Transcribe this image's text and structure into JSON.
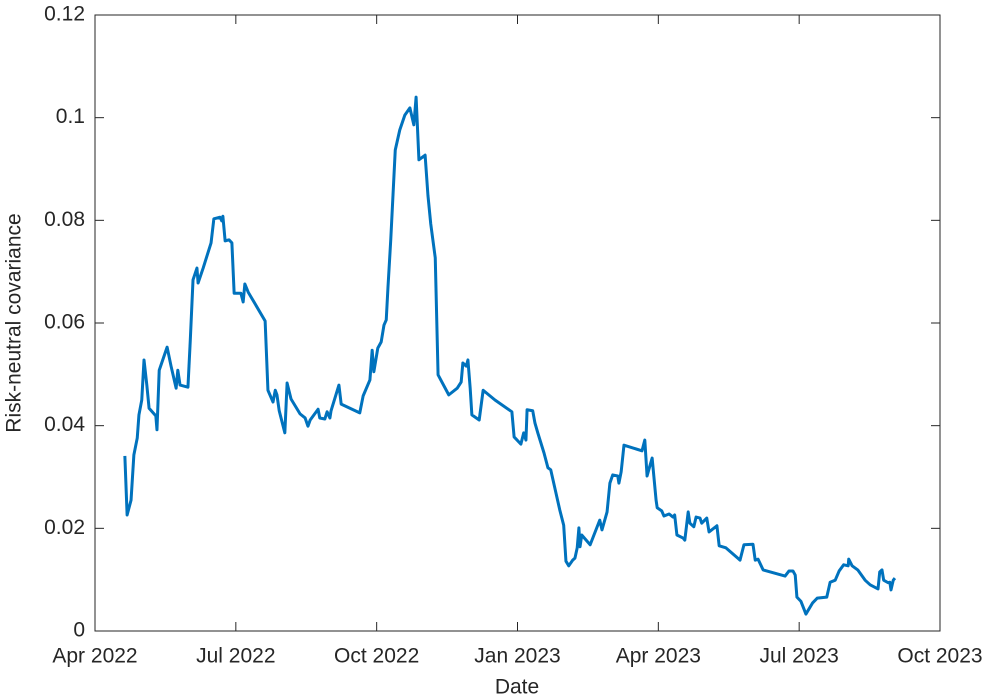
{
  "chart_data": {
    "type": "line",
    "xlabel": "Date",
    "ylabel": "Risk-neutral covariance",
    "xlim": [
      2022.25,
      2023.75
    ],
    "xticks": [
      {
        "value": 2022.25,
        "label": "Apr 2022"
      },
      {
        "value": 2022.5,
        "label": "Jul 2022"
      },
      {
        "value": 2022.75,
        "label": "Oct 2022"
      },
      {
        "value": 2023.0,
        "label": "Jan 2023"
      },
      {
        "value": 2023.25,
        "label": "Apr 2023"
      },
      {
        "value": 2023.5,
        "label": "Jul 2023"
      },
      {
        "value": 2023.75,
        "label": "Oct 2023"
      }
    ],
    "ylim": [
      0,
      0.12
    ],
    "yticks": [
      0,
      0.02,
      0.04,
      0.06,
      0.08,
      0.1,
      0.12
    ],
    "grid": false,
    "x": [
      2022.303,
      2022.307,
      2022.314,
      2022.319,
      2022.325,
      2022.328,
      2022.333,
      2022.337,
      2022.342,
      2022.346,
      2022.358,
      2022.36,
      2022.364,
      2022.378,
      2022.385,
      2022.394,
      2022.397,
      2022.401,
      2022.415,
      2022.419,
      2022.424,
      2022.431,
      2022.433,
      2022.442,
      2022.456,
      2022.461,
      2022.472,
      2022.475,
      2022.477,
      2022.481,
      2022.488,
      2022.493,
      2022.497,
      2022.509,
      2022.513,
      2022.516,
      2022.522,
      2022.552,
      2022.557,
      2022.566,
      2022.57,
      2022.573,
      2022.577,
      2022.587,
      2022.591,
      2022.598,
      2022.614,
      2022.623,
      2022.628,
      2022.632,
      2022.646,
      2022.649,
      2022.658,
      2022.662,
      2022.667,
      2022.669,
      2022.683,
      2022.687,
      2022.72,
      2022.726,
      2022.738,
      2022.742,
      2022.745,
      2022.752,
      2022.758,
      2022.763,
      2022.767,
      2022.77,
      2022.775,
      2022.783,
      2022.791,
      2022.8,
      2022.809,
      2022.816,
      2022.82,
      2022.825,
      2022.836,
      2022.841,
      2022.846,
      2022.854,
      2022.859,
      2022.878,
      2022.893,
      2022.9,
      2022.903,
      2022.909,
      2022.912,
      2022.916,
      2022.919,
      2022.932,
      2022.939,
      2022.96,
      2022.99,
      2022.994,
      2023.006,
      2023.011,
      2023.015,
      2023.017,
      2023.027,
      2023.031,
      2023.036,
      2023.047,
      2023.054,
      2023.059,
      2023.067,
      2023.075,
      2023.082,
      2023.086,
      2023.091,
      2023.098,
      2023.102,
      2023.106,
      2023.109,
      2023.111,
      2023.114,
      2023.129,
      2023.146,
      2023.15,
      2023.159,
      2023.164,
      2023.169,
      2023.178,
      2023.18,
      2023.184,
      2023.189,
      2023.221,
      2023.226,
      2023.23,
      2023.233,
      2023.239,
      2023.246,
      2023.248,
      2023.256,
      2023.26,
      2023.269,
      2023.276,
      2023.279,
      2023.283,
      2023.294,
      2023.297,
      2023.303,
      2023.306,
      2023.313,
      2023.317,
      2023.324,
      2023.327,
      2023.336,
      2023.34,
      2023.354,
      2023.358,
      2023.37,
      2023.391,
      2023.395,
      2023.402,
      2023.418,
      2023.422,
      2023.427,
      2023.436,
      2023.475,
      2023.482,
      2023.489,
      2023.493,
      2023.496,
      2023.503,
      2023.512,
      2023.524,
      2023.532,
      2023.549,
      2023.555,
      2023.564,
      2023.571,
      2023.579,
      2023.587,
      2023.588,
      2023.594,
      2023.604,
      2023.617,
      2023.626,
      2023.64,
      2023.643,
      2023.647,
      2023.65,
      2023.658,
      2023.661,
      2023.663,
      2023.667,
      2023.67
    ],
    "series": [
      {
        "color": "#0072BD",
        "values": [
          0.0341,
          0.0226,
          0.0255,
          0.0343,
          0.0376,
          0.0421,
          0.045,
          0.0528,
          0.0479,
          0.0434,
          0.0419,
          0.0392,
          0.0508,
          0.0553,
          0.0516,
          0.0473,
          0.0508,
          0.0479,
          0.0475,
          0.0563,
          0.0684,
          0.0707,
          0.0678,
          0.0707,
          0.0756,
          0.0803,
          0.0806,
          0.0799,
          0.0808,
          0.076,
          0.0762,
          0.0756,
          0.0658,
          0.0658,
          0.0641,
          0.0676,
          0.066,
          0.0604,
          0.0469,
          0.0446,
          0.0469,
          0.046,
          0.0429,
          0.0386,
          0.0483,
          0.0452,
          0.0423,
          0.0415,
          0.0399,
          0.0411,
          0.0432,
          0.0415,
          0.0413,
          0.0427,
          0.0415,
          0.0429,
          0.0479,
          0.0442,
          0.0425,
          0.0458,
          0.0489,
          0.0547,
          0.0505,
          0.0551,
          0.0563,
          0.0596,
          0.0606,
          0.0668,
          0.0762,
          0.0937,
          0.0976,
          0.1005,
          0.1019,
          0.0986,
          0.104,
          0.0918,
          0.0927,
          0.0849,
          0.0793,
          0.0727,
          0.0499,
          0.046,
          0.0473,
          0.0485,
          0.0522,
          0.0516,
          0.0528,
          0.0473,
          0.0421,
          0.0411,
          0.0469,
          0.045,
          0.0427,
          0.0378,
          0.0364,
          0.0386,
          0.0372,
          0.0431,
          0.0429,
          0.0405,
          0.0386,
          0.0347,
          0.0318,
          0.0314,
          0.0275,
          0.0236,
          0.0206,
          0.0136,
          0.0127,
          0.0138,
          0.0142,
          0.0162,
          0.0201,
          0.0164,
          0.0187,
          0.0168,
          0.0216,
          0.0197,
          0.0232,
          0.0288,
          0.0304,
          0.0302,
          0.0288,
          0.031,
          0.0362,
          0.0351,
          0.0372,
          0.0302,
          0.0314,
          0.0337,
          0.0255,
          0.024,
          0.0234,
          0.0224,
          0.0228,
          0.0222,
          0.0226,
          0.0187,
          0.0181,
          0.0177,
          0.0232,
          0.021,
          0.0203,
          0.0222,
          0.022,
          0.021,
          0.022,
          0.0193,
          0.0205,
          0.0166,
          0.0162,
          0.0142,
          0.0138,
          0.0168,
          0.0169,
          0.0138,
          0.014,
          0.0119,
          0.0107,
          0.0117,
          0.0117,
          0.0109,
          0.0066,
          0.0058,
          0.0033,
          0.0055,
          0.0064,
          0.0066,
          0.0095,
          0.0099,
          0.0117,
          0.0129,
          0.0127,
          0.014,
          0.0127,
          0.0119,
          0.0099,
          0.009,
          0.0082,
          0.0115,
          0.0119,
          0.0099,
          0.0094,
          0.0095,
          0.008,
          0.0099,
          0.0103
        ]
      }
    ]
  }
}
